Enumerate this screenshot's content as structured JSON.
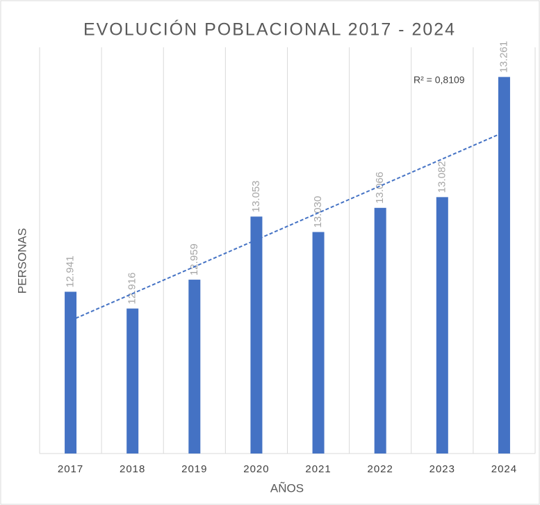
{
  "chart_data": {
    "type": "bar",
    "title": "EVOLUCIÓN POBLACIONAL 2017 - 2024",
    "x_label": "AÑOS",
    "y_label": "PERSONAS",
    "categories": [
      "2017",
      "2018",
      "2019",
      "2020",
      "2021",
      "2022",
      "2023",
      "2024"
    ],
    "values": [
      12941,
      12916,
      12959,
      13053,
      13030,
      13066,
      13082,
      13261
    ],
    "value_labels": [
      "12.941",
      "12.916",
      "12.959",
      "13.053",
      "13.030",
      "13.066",
      "13.082",
      "13.261"
    ],
    "color": "#4472c4",
    "ylim": [
      12700,
      13300
    ],
    "grid": true,
    "trendline": {
      "type": "linear",
      "color": "#4472c4",
      "annotation": "R² = 0,8109"
    }
  }
}
